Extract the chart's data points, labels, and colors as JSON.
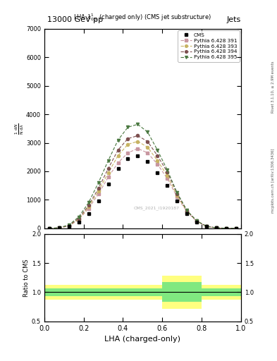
{
  "title_top": "13000 GeV pp",
  "title_right": "Jets",
  "plot_title": "LHA $\\lambda^{1}_{0.5}$ (charged only) (CMS jet substructure)",
  "xlabel": "LHA (charged-only)",
  "watermark": "CMS_2021_I1920187",
  "rivet_label": "Rivet 3.1.10, ≥ 2.9M events",
  "arxiv_label": "mcplots.cern.ch [arXiv:1306.3436]",
  "xlim": [
    0,
    1
  ],
  "ylim_main": [
    0,
    7000
  ],
  "ylim_ratio": [
    0.5,
    2.0
  ],
  "yticks_main": [
    0,
    1000,
    2000,
    3000,
    4000,
    5000,
    6000,
    7000
  ],
  "x_bins": [
    0.0,
    0.05,
    0.1,
    0.15,
    0.2,
    0.25,
    0.3,
    0.35,
    0.4,
    0.45,
    0.5,
    0.55,
    0.6,
    0.65,
    0.7,
    0.75,
    0.8,
    0.85,
    0.9,
    0.95,
    1.0
  ],
  "cms_data": [
    0,
    10,
    60,
    220,
    520,
    950,
    1550,
    2100,
    2450,
    2550,
    2350,
    1950,
    1500,
    950,
    520,
    220,
    70,
    18,
    4,
    1
  ],
  "pythia_391": [
    0,
    12,
    80,
    300,
    700,
    1200,
    1800,
    2300,
    2650,
    2800,
    2650,
    2250,
    1750,
    1100,
    580,
    240,
    65,
    14,
    3,
    1
  ],
  "pythia_393": [
    0,
    12,
    90,
    320,
    750,
    1300,
    1950,
    2550,
    2950,
    3050,
    2850,
    2380,
    1850,
    1150,
    600,
    250,
    68,
    14,
    3,
    1
  ],
  "pythia_394": [
    0,
    15,
    100,
    350,
    800,
    1400,
    2100,
    2750,
    3150,
    3250,
    3050,
    2550,
    1980,
    1220,
    620,
    258,
    72,
    15,
    3,
    1
  ],
  "pythia_395": [
    0,
    20,
    120,
    400,
    900,
    1600,
    2380,
    3100,
    3550,
    3650,
    3380,
    2750,
    2050,
    1250,
    630,
    258,
    72,
    15,
    3,
    1
  ],
  "yellow_band_lo": [
    0.87,
    0.87,
    0.87,
    0.87,
    0.87,
    0.87,
    0.87,
    0.87,
    0.87,
    0.87,
    0.87,
    0.87,
    0.72,
    0.72,
    0.72,
    0.72,
    0.87,
    0.87,
    0.87,
    0.87
  ],
  "yellow_band_hi": [
    1.13,
    1.13,
    1.13,
    1.13,
    1.13,
    1.13,
    1.13,
    1.13,
    1.13,
    1.13,
    1.13,
    1.13,
    1.28,
    1.28,
    1.28,
    1.28,
    1.13,
    1.13,
    1.13,
    1.13
  ],
  "green_band_lo": [
    0.93,
    0.93,
    0.93,
    0.93,
    0.93,
    0.93,
    0.93,
    0.93,
    0.93,
    0.93,
    0.93,
    0.93,
    0.83,
    0.83,
    0.83,
    0.83,
    0.93,
    0.93,
    0.93,
    0.93
  ],
  "green_band_hi": [
    1.07,
    1.07,
    1.07,
    1.07,
    1.07,
    1.07,
    1.07,
    1.07,
    1.07,
    1.07,
    1.07,
    1.07,
    1.17,
    1.17,
    1.17,
    1.17,
    1.07,
    1.07,
    1.07,
    1.07
  ],
  "color_391": "#c896a0",
  "color_393": "#c8b464",
  "color_394": "#7d5050",
  "color_395": "#4a7840",
  "cms_color": "#000000",
  "bg_color": "#ffffff",
  "legend_labels": [
    "CMS",
    "Pythia 6.428 391",
    "Pythia 6.428 393",
    "Pythia 6.428 394",
    "Pythia 6.428 395"
  ]
}
